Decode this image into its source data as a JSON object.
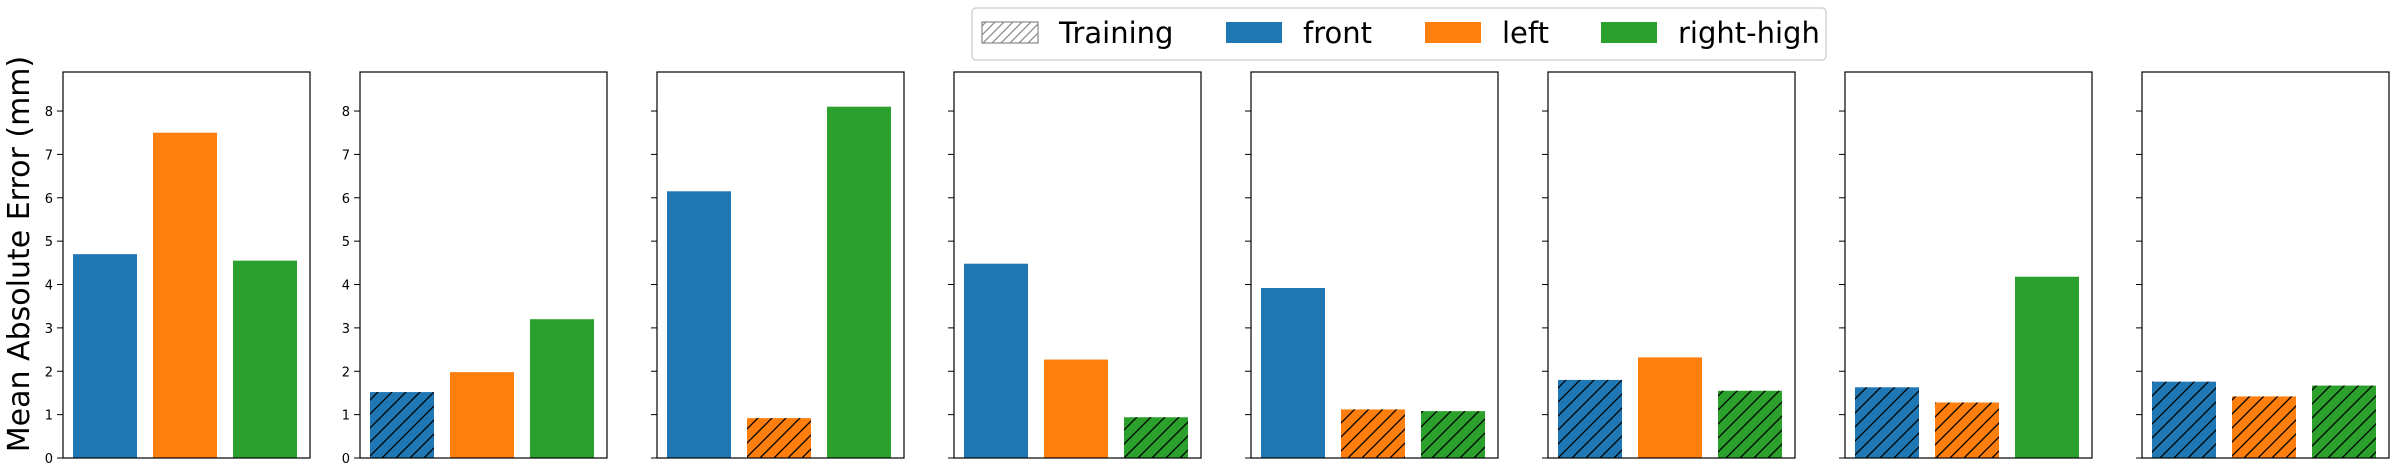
{
  "chart_data": {
    "type": "bar",
    "ylabel": "Mean Absolute Error (mm)",
    "ylim": [
      0,
      8.9
    ],
    "yticks": [
      "0",
      "1",
      "2",
      "3",
      "4",
      "5",
      "6",
      "7",
      "8"
    ],
    "legend": {
      "placement": "top-center",
      "entries": [
        {
          "label": "Training",
          "style": "hatched"
        },
        {
          "label": "front",
          "color": "#1f77b4"
        },
        {
          "label": "left",
          "color": "#ff7f0e"
        },
        {
          "label": "right-high",
          "color": "#2ca02c"
        }
      ]
    },
    "series_colors": {
      "front": "#1f77b4",
      "left": "#ff7f0e",
      "right-high": "#2ca02c"
    },
    "categories": [
      "front",
      "left",
      "right-high"
    ],
    "panels": [
      {
        "values": [
          4.7,
          7.5,
          4.55
        ],
        "training": [
          false,
          false,
          false
        ]
      },
      {
        "values": [
          1.52,
          1.98,
          3.2
        ],
        "training": [
          true,
          false,
          false
        ]
      },
      {
        "values": [
          6.15,
          0.92,
          8.1
        ],
        "training": [
          false,
          true,
          false
        ]
      },
      {
        "values": [
          4.48,
          2.27,
          0.94
        ],
        "training": [
          false,
          false,
          true
        ]
      },
      {
        "values": [
          3.92,
          1.12,
          1.08
        ],
        "training": [
          false,
          true,
          true
        ]
      },
      {
        "values": [
          1.8,
          2.32,
          1.55
        ],
        "training": [
          true,
          false,
          true
        ]
      },
      {
        "values": [
          1.63,
          1.28,
          4.18
        ],
        "training": [
          true,
          true,
          false
        ]
      },
      {
        "values": [
          1.76,
          1.42,
          1.67
        ],
        "training": [
          true,
          true,
          true
        ]
      }
    ]
  }
}
